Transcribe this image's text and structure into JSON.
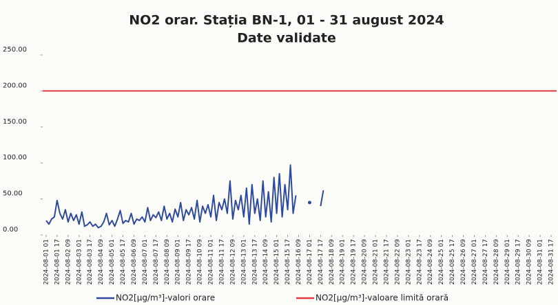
{
  "chart_data": {
    "type": "line",
    "title": "NO2 orar. Stația BN-1, 01 - 31 august 2024",
    "subtitle": "Date validate",
    "xlim": [
      -4,
      745
    ],
    "ylim": [
      0,
      250
    ],
    "yticks": [
      {
        "value": 0,
        "label": "0.00"
      },
      {
        "value": 50,
        "label": "50.00"
      },
      {
        "value": 100,
        "label": "100.00"
      },
      {
        "value": 150,
        "label": "150.00"
      },
      {
        "value": 200,
        "label": "200.00"
      },
      {
        "value": 250,
        "label": "250.00"
      }
    ],
    "xticks": [
      {
        "value": 1,
        "label": "2024-08-01 01"
      },
      {
        "value": 17,
        "label": "2024-08-01 17"
      },
      {
        "value": 33,
        "label": "2024-08-02 09"
      },
      {
        "value": 49,
        "label": "2024-08-03 01"
      },
      {
        "value": 65,
        "label": "2024-08-03 17"
      },
      {
        "value": 81,
        "label": "2024-08-04 09"
      },
      {
        "value": 97,
        "label": "2024-08-05 01"
      },
      {
        "value": 113,
        "label": "2024-08-05 17"
      },
      {
        "value": 129,
        "label": "2024-08-06 09"
      },
      {
        "value": 145,
        "label": "2024-08-07 01"
      },
      {
        "value": 161,
        "label": "2024-08-07 17"
      },
      {
        "value": 177,
        "label": "2024-08-08 09"
      },
      {
        "value": 193,
        "label": "2024-08-09 01"
      },
      {
        "value": 209,
        "label": "2024-08-09 17"
      },
      {
        "value": 225,
        "label": "2024-08-10 09"
      },
      {
        "value": 241,
        "label": "2024-08-11 01"
      },
      {
        "value": 257,
        "label": "2024-08-11 17"
      },
      {
        "value": 273,
        "label": "2024-08-12 09"
      },
      {
        "value": 289,
        "label": "2024-08-13 01"
      },
      {
        "value": 305,
        "label": "2024-08-13 17"
      },
      {
        "value": 321,
        "label": "2024-08-14 09"
      },
      {
        "value": 337,
        "label": "2024-08-15 01"
      },
      {
        "value": 353,
        "label": "2024-08-15 17"
      },
      {
        "value": 369,
        "label": "2024-08-16 09"
      },
      {
        "value": 385,
        "label": "2024-08-17 01"
      },
      {
        "value": 401,
        "label": "2024-08-17 17"
      },
      {
        "value": 417,
        "label": "2024-08-18 09"
      },
      {
        "value": 433,
        "label": "2024-08-19 01"
      },
      {
        "value": 449,
        "label": "2024-08-19 17"
      },
      {
        "value": 465,
        "label": "2024-08-20 09"
      },
      {
        "value": 481,
        "label": "2024-08-21 01"
      },
      {
        "value": 497,
        "label": "2024-08-21 17"
      },
      {
        "value": 513,
        "label": "2024-08-22 09"
      },
      {
        "value": 529,
        "label": "2024-08-23 01"
      },
      {
        "value": 545,
        "label": "2024-08-23 17"
      },
      {
        "value": 561,
        "label": "2024-08-24 09"
      },
      {
        "value": 577,
        "label": "2024-08-25 01"
      },
      {
        "value": 593,
        "label": "2024-08-25 17"
      },
      {
        "value": 609,
        "label": "2024-08-26 09"
      },
      {
        "value": 625,
        "label": "2024-08-27 01"
      },
      {
        "value": 641,
        "label": "2024-08-27 17"
      },
      {
        "value": 657,
        "label": "2024-08-28 09"
      },
      {
        "value": 673,
        "label": "2024-08-29 01"
      },
      {
        "value": 689,
        "label": "2024-08-29 17"
      },
      {
        "value": 705,
        "label": "2024-08-30 09"
      },
      {
        "value": 721,
        "label": "2024-08-31 01"
      },
      {
        "value": 737,
        "label": "2024-08-31 17"
      }
    ],
    "series": [
      {
        "name": "NO2[µg/m³]-valori orare",
        "color": "#2f4a9c",
        "x": [
          1,
          5,
          9,
          13,
          17,
          21,
          25,
          29,
          33,
          37,
          41,
          45,
          49,
          53,
          57,
          61,
          65,
          69,
          73,
          77,
          81,
          85,
          89,
          93,
          97,
          101,
          105,
          109,
          113,
          117,
          121,
          125,
          129,
          133,
          137,
          141,
          145,
          149,
          153,
          157,
          161,
          165,
          169,
          173,
          177,
          181,
          185,
          189,
          193,
          197,
          201,
          205,
          209,
          213,
          217,
          221,
          225,
          229,
          233,
          237,
          241,
          245,
          249,
          253,
          257,
          261,
          265,
          269,
          273,
          277,
          281,
          285,
          289,
          293,
          297,
          301,
          305,
          309,
          313,
          317,
          321,
          325,
          329,
          333,
          337,
          341,
          345,
          349,
          353,
          357,
          361,
          365,
          369,
          373,
          377,
          381,
          385,
          389,
          393,
          397,
          401,
          405
        ],
        "values": [
          20,
          15,
          22,
          25,
          48,
          30,
          22,
          35,
          18,
          30,
          20,
          28,
          15,
          32,
          12,
          14,
          18,
          12,
          15,
          10,
          12,
          18,
          30,
          14,
          20,
          12,
          22,
          34,
          16,
          20,
          18,
          30,
          15,
          22,
          20,
          25,
          18,
          38,
          20,
          28,
          24,
          32,
          20,
          40,
          22,
          30,
          18,
          36,
          25,
          45,
          20,
          35,
          28,
          38,
          22,
          48,
          18,
          40,
          30,
          42,
          25,
          55,
          20,
          45,
          35,
          50,
          30,
          75,
          22,
          48,
          35,
          55,
          25,
          65,
          15,
          70,
          30,
          50,
          20,
          75,
          25,
          60,
          18,
          80,
          30,
          85,
          25,
          70,
          35,
          97,
          30,
          55,
          null,
          null,
          null,
          null,
          45,
          null,
          null,
          null,
          40,
          62
        ]
      },
      {
        "name": "NO2[µg/m³]-valoare limită orară",
        "color": "#e03a3a",
        "x": [
          -4,
          745
        ],
        "values": [
          200,
          200
        ]
      }
    ]
  }
}
